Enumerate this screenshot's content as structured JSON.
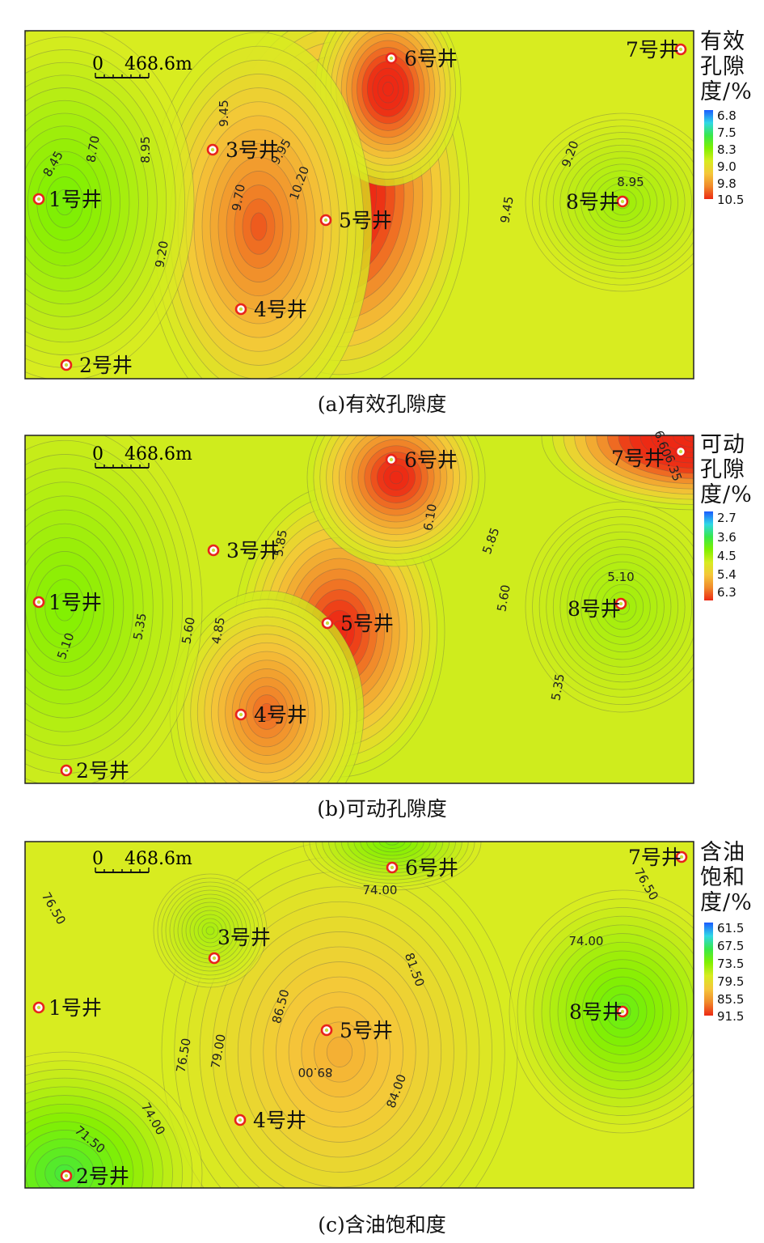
{
  "panels": [
    {
      "id": "a",
      "caption": "(a)有效孔隙度",
      "legend_title_lines": [
        "有效",
        "孔隙",
        "度/%"
      ],
      "legend_ticks": [
        "6.8",
        "7.5",
        "8.3",
        "9.0",
        "9.8",
        "10.5"
      ],
      "scale_zero": "0",
      "scale_length": "468.6m"
    },
    {
      "id": "b",
      "caption": "(b)可动孔隙度",
      "legend_title_lines": [
        "可动",
        "孔隙",
        "度/%"
      ],
      "legend_ticks": [
        "2.7",
        "3.6",
        "4.5",
        "5.4",
        "6.3"
      ],
      "scale_zero": "0",
      "scale_length": "468.6m"
    },
    {
      "id": "c",
      "caption": "(c)含油饱和度",
      "legend_title_lines": [
        "含油",
        "饱和",
        "度/%"
      ],
      "legend_ticks": [
        "61.5",
        "67.5",
        "73.5",
        "79.5",
        "85.5",
        "91.5"
      ],
      "scale_zero": "0",
      "scale_length": "468.6m"
    }
  ],
  "colors": {
    "ramp": [
      "#1b5cff",
      "#2fd8e6",
      "#38e84a",
      "#7ff000",
      "#d8ec20",
      "#f5c63a",
      "#f08a2a",
      "#ec2a14"
    ],
    "well_ring": "#e8231c",
    "contour": "#555555"
  },
  "chart_data": [
    {
      "type": "heatmap",
      "title": "(a)有效孔隙度",
      "legend_title": "有效孔隙度/%",
      "color_range": [
        6.8,
        10.5
      ],
      "wells": [
        {
          "name": "1号井",
          "value": 8.2
        },
        {
          "name": "2号井",
          "value": 9.0
        },
        {
          "name": "3号井",
          "value": 9.5
        },
        {
          "name": "4号井",
          "value": 9.6
        },
        {
          "name": "5号井",
          "value": 10.5
        },
        {
          "name": "6号井",
          "value": 10.1
        },
        {
          "name": "7号井",
          "value": 9.0
        },
        {
          "name": "8号井",
          "value": 8.8
        }
      ],
      "contour_labels": [
        "8.45",
        "8.70",
        "8.95",
        "9.45",
        "9.95",
        "10.20",
        "9.70",
        "9.20",
        "9.20",
        "8.95",
        "9.45"
      ]
    },
    {
      "type": "heatmap",
      "title": "(b)可动孔隙度",
      "legend_title": "可动孔隙度/%",
      "color_range": [
        2.7,
        6.3
      ],
      "wells": [
        {
          "name": "1号井",
          "value": 4.6
        },
        {
          "name": "2号井",
          "value": 5.0
        },
        {
          "name": "3号井",
          "value": 5.6
        },
        {
          "name": "4号井",
          "value": 5.9
        },
        {
          "name": "5号井",
          "value": 6.2
        },
        {
          "name": "6号井",
          "value": 6.2
        },
        {
          "name": "7号井",
          "value": 6.9
        },
        {
          "name": "8号井",
          "value": 5.0
        }
      ],
      "contour_labels": [
        "6.60",
        "6.35",
        "5.85",
        "6.10",
        "5.85",
        "5.60",
        "5.10",
        "5.35",
        "5.60",
        "4.85",
        "5.10",
        "5.35"
      ]
    },
    {
      "type": "heatmap",
      "title": "(c)含油饱和度",
      "legend_title": "含油饱和度/%",
      "color_range": [
        61.5,
        91.5
      ],
      "wells": [
        {
          "name": "1号井",
          "value": 78.0
        },
        {
          "name": "2号井",
          "value": 69.5
        },
        {
          "name": "3号井",
          "value": 76.0
        },
        {
          "name": "4号井",
          "value": 79.0
        },
        {
          "name": "5号井",
          "value": 91.5
        },
        {
          "name": "6号井",
          "value": 74.0
        },
        {
          "name": "7号井",
          "value": 78.0
        },
        {
          "name": "8号井",
          "value": 71.5
        }
      ],
      "contour_labels": [
        "74.00",
        "76.50",
        "76.50",
        "74.00",
        "81.50",
        "86.50",
        "89.00",
        "84.00",
        "79.00",
        "76.50",
        "74.00",
        "71.50"
      ]
    }
  ]
}
